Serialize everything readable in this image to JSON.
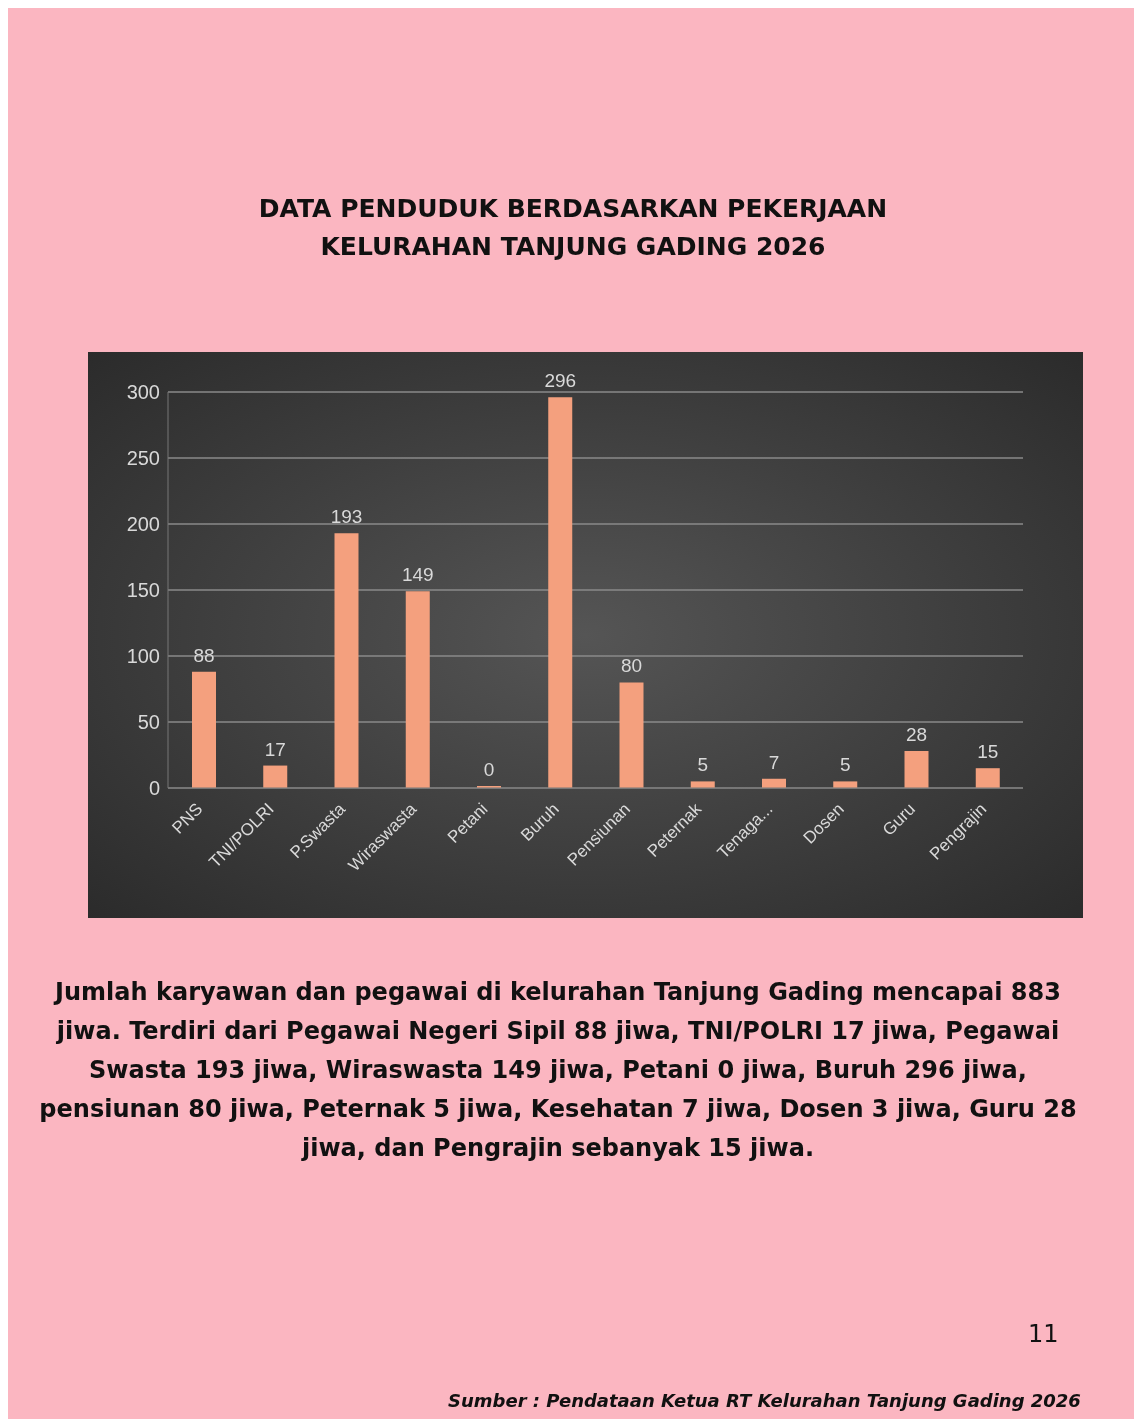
{
  "chart_data": {
    "type": "bar",
    "title": "DATA PENDUDUK  BERDASARKAN PEKERJAAN KELURAHAN TANJUNG GADING 2026",
    "categories": [
      "PNS",
      "TNI/POLRI",
      "P.Swasta",
      "Wiraswasta",
      "Petani",
      "Buruh",
      "Pensiunan",
      "Peternak",
      "Tenaga...",
      "Dosen",
      "Guru",
      "Pengrajin"
    ],
    "values": [
      88,
      17,
      193,
      149,
      0,
      296,
      80,
      5,
      7,
      5,
      28,
      15
    ],
    "color": "#f4a07e",
    "ylim": [
      0,
      300
    ],
    "yticks": [
      0,
      50,
      100,
      150,
      200,
      250,
      300
    ],
    "grid": "y",
    "data_labels": true,
    "annotations": [
      "Jumlah karyawan dan pegawai di kelurahan Tanjung Gading mencapai 883 jiwa. Terdiri dari Pegawai Negeri Sipil 88 jiwa, TNI/POLRI 17 jiwa, Pegawai Swasta 193 jiwa,  Wiraswasta 149 jiwa, Petani 0 jiwa, Buruh 296 jiwa, pensiunan 80 jiwa, Peternak 5 jiwa, Kesehatan 7 jiwa, Dosen 3 jiwa, Guru 28 jiwa, dan Pengrajin sebanyak 15 jiwa.",
      "11",
      "Sumber : Pendataan Ketua RT Kelurahan Tanjung Gading 2026"
    ]
  }
}
